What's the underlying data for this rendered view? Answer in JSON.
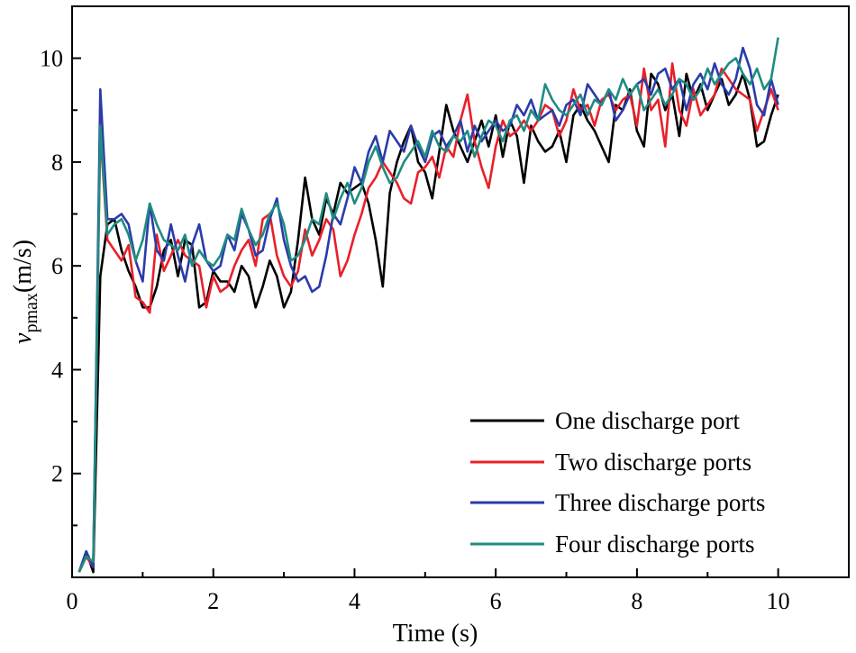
{
  "chart_data": {
    "type": "line",
    "title": "",
    "xlabel": "Time (s)",
    "ylabel_main": "v",
    "ylabel_sub": "pmax",
    "ylabel_unit": "(m/s)",
    "xlim": [
      0,
      11
    ],
    "ylim": [
      0,
      11
    ],
    "x_ticks": [
      0,
      2,
      4,
      6,
      8,
      10
    ],
    "x_tick_labels": [
      "0",
      "2",
      "4",
      "6",
      "8",
      "10"
    ],
    "y_ticks": [
      2,
      4,
      6,
      8,
      10
    ],
    "y_tick_labels": [
      "2",
      "4",
      "6",
      "8",
      "10"
    ],
    "legend_position": "bottom-right",
    "series": [
      {
        "name": "One discharge port",
        "color": "#000000",
        "x": [
          0.1,
          0.2,
          0.3,
          0.4,
          0.5,
          0.6,
          0.7,
          0.8,
          0.9,
          1.0,
          1.1,
          1.2,
          1.3,
          1.4,
          1.5,
          1.6,
          1.7,
          1.8,
          1.9,
          2.0,
          2.1,
          2.2,
          2.3,
          2.4,
          2.5,
          2.6,
          2.7,
          2.8,
          2.9,
          3.0,
          3.1,
          3.2,
          3.3,
          3.4,
          3.5,
          3.6,
          3.7,
          3.8,
          3.9,
          4.0,
          4.1,
          4.2,
          4.3,
          4.4,
          4.5,
          4.6,
          4.7,
          4.8,
          4.9,
          5.0,
          5.1,
          5.2,
          5.3,
          5.4,
          5.5,
          5.6,
          5.7,
          5.8,
          5.9,
          6.0,
          6.1,
          6.2,
          6.3,
          6.4,
          6.5,
          6.6,
          6.7,
          6.8,
          6.9,
          7.0,
          7.1,
          7.2,
          7.3,
          7.4,
          7.5,
          7.6,
          7.7,
          7.8,
          7.9,
          8.0,
          8.1,
          8.2,
          8.3,
          8.4,
          8.5,
          8.6,
          8.7,
          8.8,
          8.9,
          9.0,
          9.1,
          9.2,
          9.3,
          9.4,
          9.5,
          9.6,
          9.7,
          9.8,
          9.9,
          10.0
        ],
        "y": [
          0.1,
          0.5,
          0.1,
          5.8,
          6.8,
          6.9,
          6.3,
          5.9,
          5.6,
          5.2,
          5.2,
          5.6,
          6.3,
          6.5,
          5.8,
          6.5,
          6.4,
          5.2,
          5.3,
          5.9,
          5.7,
          5.7,
          5.5,
          6.0,
          5.8,
          5.2,
          5.6,
          6.1,
          5.8,
          5.2,
          5.5,
          6.5,
          7.7,
          6.9,
          6.6,
          7.3,
          7.0,
          7.6,
          7.4,
          7.5,
          7.6,
          7.2,
          6.5,
          5.6,
          7.4,
          8.0,
          8.4,
          8.7,
          8.0,
          7.8,
          7.3,
          8.2,
          9.1,
          8.6,
          8.3,
          8.0,
          8.4,
          8.8,
          8.3,
          8.9,
          8.1,
          8.8,
          8.5,
          7.6,
          8.7,
          8.4,
          8.2,
          8.3,
          8.6,
          8.0,
          8.9,
          9.1,
          8.8,
          8.6,
          8.3,
          8.0,
          9.1,
          9.0,
          9.4,
          8.6,
          8.3,
          9.7,
          9.5,
          9.0,
          9.3,
          8.5,
          9.7,
          9.2,
          9.5,
          9.0,
          9.3,
          9.6,
          9.1,
          9.3,
          9.7,
          9.2,
          8.3,
          8.4,
          8.9,
          9.3
        ]
      },
      {
        "name": "Two discharge ports",
        "color": "#e8202a",
        "x": [
          0.1,
          0.2,
          0.3,
          0.4,
          0.5,
          0.6,
          0.7,
          0.8,
          0.9,
          1.0,
          1.1,
          1.2,
          1.3,
          1.4,
          1.5,
          1.6,
          1.7,
          1.8,
          1.9,
          2.0,
          2.1,
          2.2,
          2.3,
          2.4,
          2.5,
          2.6,
          2.7,
          2.8,
          2.9,
          3.0,
          3.1,
          3.2,
          3.3,
          3.4,
          3.5,
          3.6,
          3.7,
          3.8,
          3.9,
          4.0,
          4.1,
          4.2,
          4.3,
          4.4,
          4.5,
          4.6,
          4.7,
          4.8,
          4.9,
          5.0,
          5.1,
          5.2,
          5.3,
          5.4,
          5.5,
          5.6,
          5.7,
          5.8,
          5.9,
          6.0,
          6.1,
          6.2,
          6.3,
          6.4,
          6.5,
          6.6,
          6.7,
          6.8,
          6.9,
          7.0,
          7.1,
          7.2,
          7.3,
          7.4,
          7.5,
          7.6,
          7.7,
          7.8,
          7.9,
          8.0,
          8.1,
          8.2,
          8.3,
          8.4,
          8.5,
          8.6,
          8.7,
          8.8,
          8.9,
          9.0,
          9.1,
          9.2,
          9.3,
          9.4,
          9.5,
          9.6,
          9.7,
          9.8,
          9.9,
          10.0
        ],
        "y": [
          0.1,
          0.4,
          0.2,
          8.6,
          6.5,
          6.3,
          6.1,
          6.4,
          5.4,
          5.3,
          5.1,
          6.6,
          5.9,
          6.2,
          6.5,
          6.2,
          6.1,
          6.0,
          5.2,
          5.8,
          5.5,
          5.6,
          6.0,
          6.3,
          6.5,
          6.0,
          6.9,
          7.0,
          6.2,
          5.8,
          5.6,
          5.9,
          6.7,
          6.2,
          6.5,
          6.9,
          6.7,
          5.8,
          6.1,
          6.6,
          7.0,
          7.5,
          7.7,
          8.0,
          7.8,
          7.6,
          7.3,
          7.2,
          7.8,
          7.9,
          8.1,
          7.7,
          8.3,
          8.1,
          8.8,
          9.3,
          8.4,
          7.9,
          7.5,
          8.3,
          8.8,
          8.5,
          8.6,
          8.8,
          8.6,
          8.8,
          9.1,
          9.0,
          8.5,
          8.8,
          9.4,
          9.0,
          9.1,
          8.7,
          9.2,
          9.3,
          9.0,
          9.2,
          9.3,
          8.7,
          9.8,
          9.0,
          9.2,
          8.3,
          9.9,
          9.0,
          8.7,
          9.4,
          8.9,
          9.1,
          9.3,
          9.8,
          9.6,
          9.4,
          9.3,
          9.2,
          8.6,
          9.0,
          9.4,
          9.0
        ]
      },
      {
        "name": "Three discharge ports",
        "color": "#2b3baa",
        "x": [
          0.1,
          0.2,
          0.3,
          0.4,
          0.5,
          0.6,
          0.7,
          0.8,
          0.9,
          1.0,
          1.1,
          1.2,
          1.3,
          1.4,
          1.5,
          1.6,
          1.7,
          1.8,
          1.9,
          2.0,
          2.1,
          2.2,
          2.3,
          2.4,
          2.5,
          2.6,
          2.7,
          2.8,
          2.9,
          3.0,
          3.1,
          3.2,
          3.3,
          3.4,
          3.5,
          3.6,
          3.7,
          3.8,
          3.9,
          4.0,
          4.1,
          4.2,
          4.3,
          4.4,
          4.5,
          4.6,
          4.7,
          4.8,
          4.9,
          5.0,
          5.1,
          5.2,
          5.3,
          5.4,
          5.5,
          5.6,
          5.7,
          5.8,
          5.9,
          6.0,
          6.1,
          6.2,
          6.3,
          6.4,
          6.5,
          6.6,
          6.7,
          6.8,
          6.9,
          7.0,
          7.1,
          7.2,
          7.3,
          7.4,
          7.5,
          7.6,
          7.7,
          7.8,
          7.9,
          8.0,
          8.1,
          8.2,
          8.3,
          8.4,
          8.5,
          8.6,
          8.7,
          8.8,
          8.9,
          9.0,
          9.1,
          9.2,
          9.3,
          9.4,
          9.5,
          9.6,
          9.7,
          9.8,
          9.9,
          10.0
        ],
        "y": [
          0.1,
          0.5,
          0.2,
          9.4,
          6.9,
          6.9,
          7.0,
          6.8,
          6.1,
          5.7,
          7.2,
          6.3,
          6.1,
          6.8,
          6.2,
          5.7,
          6.4,
          6.8,
          6.1,
          5.9,
          6.0,
          6.6,
          6.3,
          7.0,
          6.7,
          6.2,
          6.3,
          6.9,
          7.3,
          6.5,
          6.0,
          5.7,
          5.8,
          5.5,
          5.6,
          6.2,
          7.0,
          6.8,
          7.3,
          7.9,
          7.6,
          8.2,
          8.5,
          8.0,
          8.6,
          8.4,
          8.2,
          8.7,
          8.3,
          8.0,
          8.5,
          8.6,
          8.3,
          8.5,
          8.8,
          8.2,
          8.7,
          8.4,
          8.6,
          8.8,
          8.6,
          8.7,
          9.1,
          8.9,
          9.2,
          8.8,
          8.9,
          9.0,
          8.7,
          9.1,
          9.2,
          8.9,
          9.5,
          9.3,
          9.1,
          9.4,
          8.8,
          9.0,
          9.3,
          9.5,
          9.6,
          9.3,
          9.7,
          9.8,
          9.4,
          9.6,
          9.0,
          9.5,
          9.7,
          9.4,
          9.9,
          9.5,
          9.3,
          9.6,
          10.2,
          9.8,
          9.1,
          8.9,
          9.6,
          9.1
        ]
      },
      {
        "name": "Four discharge ports",
        "color": "#1f8c82",
        "x": [
          0.1,
          0.2,
          0.3,
          0.4,
          0.5,
          0.6,
          0.7,
          0.8,
          0.9,
          1.0,
          1.1,
          1.2,
          1.3,
          1.4,
          1.5,
          1.6,
          1.7,
          1.8,
          1.9,
          2.0,
          2.1,
          2.2,
          2.3,
          2.4,
          2.5,
          2.6,
          2.7,
          2.8,
          2.9,
          3.0,
          3.1,
          3.2,
          3.3,
          3.4,
          3.5,
          3.6,
          3.7,
          3.8,
          3.9,
          4.0,
          4.1,
          4.2,
          4.3,
          4.4,
          4.5,
          4.6,
          4.7,
          4.8,
          4.9,
          5.0,
          5.1,
          5.2,
          5.3,
          5.4,
          5.5,
          5.6,
          5.7,
          5.8,
          5.9,
          6.0,
          6.1,
          6.2,
          6.3,
          6.4,
          6.5,
          6.6,
          6.7,
          6.8,
          6.9,
          7.0,
          7.1,
          7.2,
          7.3,
          7.4,
          7.5,
          7.6,
          7.7,
          7.8,
          7.9,
          8.0,
          8.1,
          8.2,
          8.3,
          8.4,
          8.5,
          8.6,
          8.7,
          8.8,
          8.9,
          9.0,
          9.1,
          9.2,
          9.3,
          9.4,
          9.5,
          9.6,
          9.7,
          9.8,
          9.9,
          10.0
        ],
        "y": [
          0.1,
          0.4,
          0.3,
          8.7,
          6.6,
          6.8,
          6.9,
          6.6,
          6.1,
          6.5,
          7.2,
          6.8,
          6.5,
          6.4,
          6.3,
          6.6,
          6.0,
          6.3,
          6.1,
          6.0,
          6.2,
          6.6,
          6.5,
          7.1,
          6.7,
          6.4,
          6.6,
          7.0,
          7.2,
          6.8,
          6.1,
          6.2,
          6.5,
          6.9,
          6.8,
          7.4,
          6.9,
          7.3,
          7.6,
          7.2,
          7.5,
          8.0,
          8.3,
          7.9,
          7.6,
          7.7,
          8.0,
          8.2,
          8.4,
          8.1,
          8.6,
          8.3,
          8.2,
          8.5,
          8.4,
          8.6,
          8.1,
          8.5,
          8.8,
          8.7,
          8.4,
          8.8,
          8.9,
          8.6,
          9.0,
          8.8,
          9.5,
          9.2,
          9.0,
          8.9,
          9.1,
          9.3,
          8.9,
          9.2,
          9.1,
          9.4,
          9.2,
          9.6,
          9.3,
          9.5,
          9.0,
          9.2,
          9.4,
          9.1,
          9.3,
          9.6,
          9.5,
          9.2,
          9.4,
          9.8,
          9.5,
          9.7,
          9.9,
          10.0,
          9.7,
          9.5,
          9.8,
          9.4,
          9.6,
          10.4
        ]
      }
    ]
  }
}
